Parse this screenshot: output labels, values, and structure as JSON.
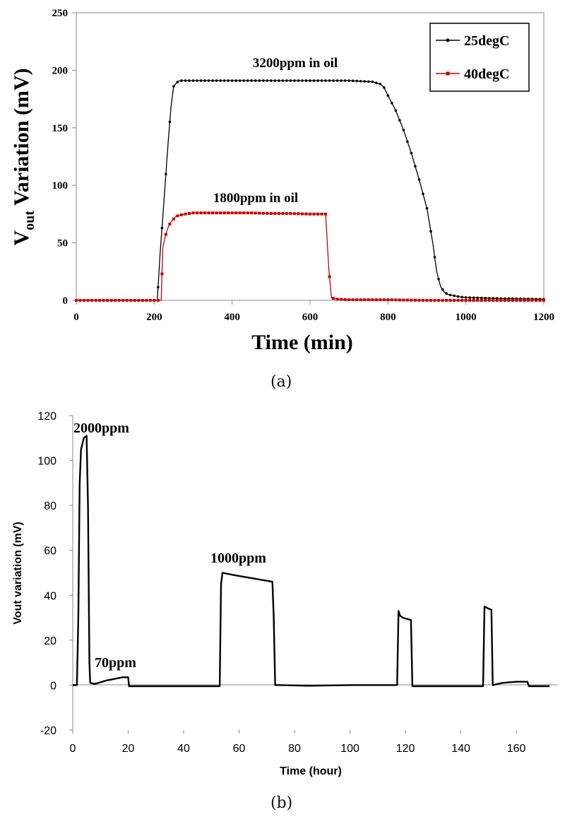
{
  "chart_data": [
    {
      "type": "line",
      "panel_label": "(a)",
      "xlabel": "Time (min)",
      "ylabel_parts": [
        "V",
        "out",
        " Variation (mV)"
      ],
      "xlim": [
        0,
        1200
      ],
      "ylim": [
        0,
        250
      ],
      "x_ticks": [
        "0",
        "200",
        "400",
        "600",
        "800",
        "1000",
        "1200"
      ],
      "y_ticks": [
        "0",
        "50",
        "100",
        "150",
        "200",
        "250"
      ],
      "grid": false,
      "legend_position": "top-right",
      "annotations": [
        "3200ppm  in oil",
        "1800ppm  in oil"
      ],
      "series": [
        {
          "name": "25degC",
          "color": "#000000",
          "marker": "dot",
          "points": [
            [
              0,
              0
            ],
            [
              205,
              0
            ],
            [
              208,
              0
            ],
            [
              215,
              40
            ],
            [
              222,
              72
            ],
            [
              229,
              105
            ],
            [
              236,
              138
            ],
            [
              243,
              168
            ],
            [
              250,
              186
            ],
            [
              257,
              189
            ],
            [
              265,
              191
            ],
            [
              300,
              191
            ],
            [
              400,
              191
            ],
            [
              500,
              191
            ],
            [
              600,
              191
            ],
            [
              700,
              191
            ],
            [
              760,
              190
            ],
            [
              780,
              188
            ],
            [
              790,
              185
            ],
            [
              800,
              178
            ],
            [
              820,
              165
            ],
            [
              840,
              148
            ],
            [
              860,
              128
            ],
            [
              880,
              105
            ],
            [
              900,
              80
            ],
            [
              915,
              50
            ],
            [
              925,
              25
            ],
            [
              935,
              12
            ],
            [
              945,
              7
            ],
            [
              955,
              5
            ],
            [
              970,
              4
            ],
            [
              985,
              3
            ],
            [
              1000,
              2.5
            ],
            [
              1050,
              2
            ],
            [
              1100,
              1.5
            ],
            [
              1150,
              1.3
            ],
            [
              1200,
              1
            ]
          ]
        },
        {
          "name": "40degC",
          "color": "#cc0000",
          "marker": "square",
          "points": [
            [
              0,
              0
            ],
            [
              218,
              0
            ],
            [
              222,
              46
            ],
            [
              228,
              55
            ],
            [
              234,
              62
            ],
            [
              241,
              67
            ],
            [
              248,
              70
            ],
            [
              256,
              73
            ],
            [
              265,
              74
            ],
            [
              280,
              75
            ],
            [
              300,
              76
            ],
            [
              350,
              76
            ],
            [
              400,
              76
            ],
            [
              450,
              76
            ],
            [
              500,
              75.5
            ],
            [
              550,
              75.5
            ],
            [
              600,
              75
            ],
            [
              640,
              75
            ],
            [
              648,
              28
            ],
            [
              655,
              2
            ],
            [
              670,
              1
            ],
            [
              700,
              0.5
            ],
            [
              800,
              0.5
            ],
            [
              900,
              0
            ],
            [
              1000,
              0
            ],
            [
              1100,
              0
            ],
            [
              1200,
              0
            ]
          ]
        }
      ]
    },
    {
      "type": "line",
      "panel_label": "(b)",
      "xlabel": "Time (hour)",
      "ylabel": "Vout variation (mV)",
      "xlim": [
        0,
        175
      ],
      "ylim": [
        -20,
        120
      ],
      "x_ticks": [
        "0",
        "20",
        "40",
        "60",
        "80",
        "100",
        "120",
        "140",
        "160"
      ],
      "y_ticks": [
        "-20",
        "0",
        "20",
        "40",
        "60",
        "80",
        "100",
        "120"
      ],
      "grid": false,
      "annotations": [
        "2000ppm",
        "70ppm",
        "1000ppm"
      ],
      "series": [
        {
          "color": "#000000",
          "points": [
            [
              0,
              0
            ],
            [
              1.5,
              0
            ],
            [
              2,
              30
            ],
            [
              2.5,
              90
            ],
            [
              3,
              105
            ],
            [
              4,
              110
            ],
            [
              5,
              111
            ],
            [
              5.5,
              80
            ],
            [
              6,
              10
            ],
            [
              6.3,
              1
            ],
            [
              8,
              0.5
            ],
            [
              12,
              2
            ],
            [
              16,
              3
            ],
            [
              18,
              3.5
            ],
            [
              20,
              3.5
            ],
            [
              20.3,
              -0.5
            ],
            [
              30,
              -0.5
            ],
            [
              40,
              -0.5
            ],
            [
              53,
              -0.5
            ],
            [
              53.5,
              45
            ],
            [
              54,
              50
            ],
            [
              58,
              49
            ],
            [
              65,
              47.5
            ],
            [
              72,
              46
            ],
            [
              72.5,
              30
            ],
            [
              73,
              0
            ],
            [
              75,
              0
            ],
            [
              85,
              -0.3
            ],
            [
              100,
              0
            ],
            [
              117,
              0
            ],
            [
              117.5,
              33
            ],
            [
              118,
              31
            ],
            [
              119,
              30
            ],
            [
              122,
              29
            ],
            [
              122.5,
              -0.5
            ],
            [
              130,
              -0.5
            ],
            [
              148,
              -0.5
            ],
            [
              148.5,
              35
            ],
            [
              150,
              34
            ],
            [
              151,
              33.5
            ],
            [
              151.5,
              0
            ],
            [
              155,
              1
            ],
            [
              160,
              1.5
            ],
            [
              164,
              1.5
            ],
            [
              164.5,
              -0.5
            ],
            [
              172,
              -0.5
            ]
          ]
        }
      ]
    }
  ]
}
